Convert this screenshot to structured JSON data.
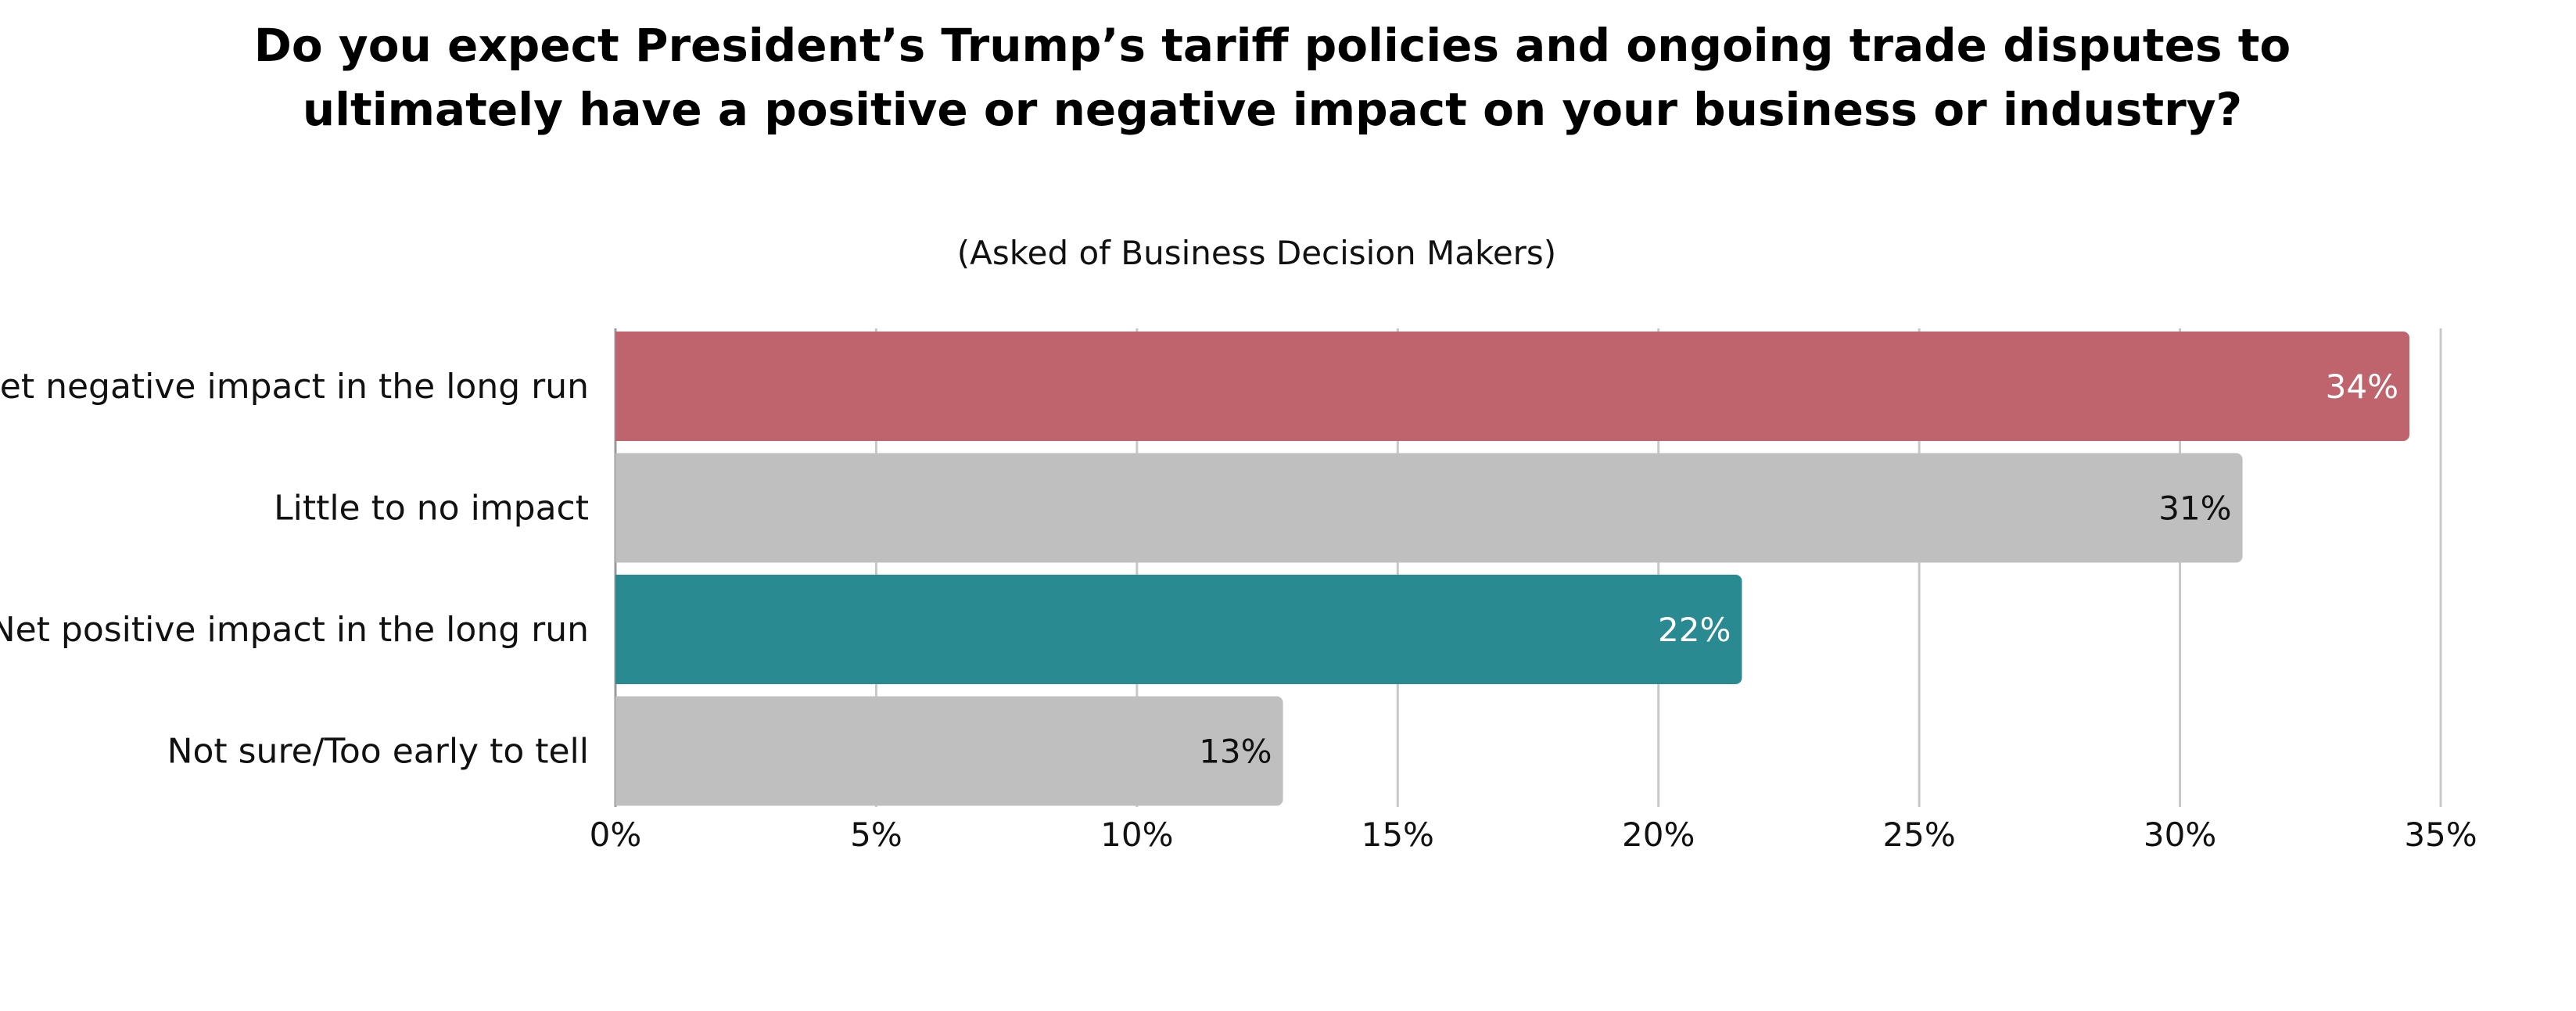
{
  "chart_data": {
    "type": "bar",
    "orientation": "horizontal",
    "title_lines": [
      "Do you expect President’s Trump’s tariff policies and ongoing trade disputes to",
      "ultimately have a positive or negative impact on your business or industry?"
    ],
    "subtitle": "(Asked of Business Decision Makers)",
    "categories": [
      "Net negative impact in the long run",
      "Little to no impact",
      "Net positive impact in the long run",
      "Not sure/Too early to tell"
    ],
    "values": [
      34.4,
      31.2,
      21.6,
      12.8
    ],
    "data_labels": [
      "34%",
      "31%",
      "22%",
      "13%"
    ],
    "colors": [
      "#bf636c",
      "#bfbfbf",
      "#298a92",
      "#bfbfbf"
    ],
    "label_colors": [
      "#ffffff",
      "#111111",
      "#ffffff",
      "#111111"
    ],
    "xlim": [
      0,
      35
    ],
    "xticks": [
      0,
      5,
      10,
      15,
      20,
      25,
      30,
      35
    ],
    "xtick_labels": [
      "0%",
      "5%",
      "10%",
      "15%",
      "20%",
      "25%",
      "30%",
      "35%"
    ],
    "grid": true,
    "legend": "none"
  }
}
